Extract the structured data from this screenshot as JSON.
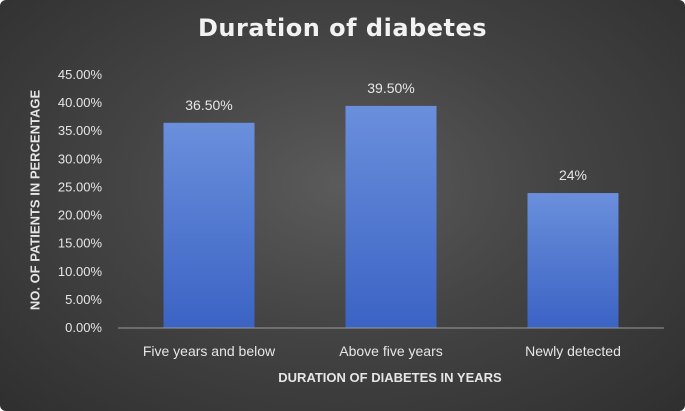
{
  "chart_data": {
    "type": "bar",
    "title": "Duration of diabetes",
    "xlabel": "DURATION OF DIABETES IN YEARS",
    "ylabel": "NO. OF PATIENTS IN PERCENTAGE",
    "categories": [
      "Five years and below",
      "Above five years",
      "Newly detected"
    ],
    "values": [
      36.5,
      39.5,
      24
    ],
    "data_labels": [
      "36.50%",
      "39.50%",
      "24%"
    ],
    "ylim": [
      0,
      45
    ],
    "yticks": [
      0,
      5,
      10,
      15,
      20,
      25,
      30,
      35,
      40,
      45
    ],
    "ytick_labels": [
      "0.00%",
      "5.00%",
      "10.00%",
      "15.00%",
      "20.00%",
      "25.00%",
      "30.00%",
      "35.00%",
      "40.00%",
      "45.00%"
    ],
    "grid": false,
    "legend": "none",
    "colors": {
      "bar_top": "#6a8fdc",
      "bar_bottom": "#3b63c4",
      "text": "#e6e6e6",
      "axis": "#9a9a9a"
    }
  }
}
